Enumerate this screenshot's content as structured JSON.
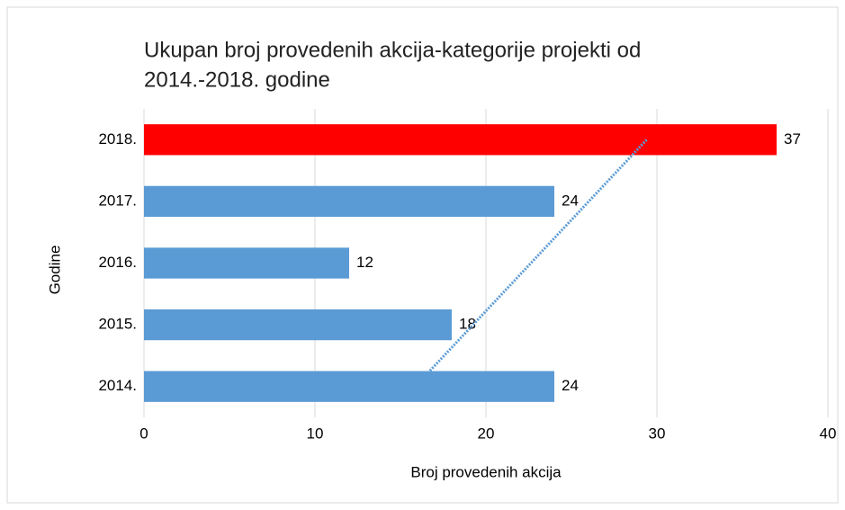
{
  "chart_data": {
    "type": "bar",
    "orientation": "horizontal",
    "title": [
      "Ukupan broj provedenih akcija-kategorije projekti od",
      "2014.-2018. godine"
    ],
    "x_label": "Broj provedenih akcija",
    "y_label": "Godine",
    "categories": [
      "2014.",
      "2015.",
      "2016.",
      "2017.",
      "2018."
    ],
    "values": [
      24,
      18,
      12,
      24,
      37
    ],
    "colors": [
      "#5b9bd5",
      "#5b9bd5",
      "#5b9bd5",
      "#5b9bd5",
      "#ff0000"
    ],
    "xlim": [
      0,
      40
    ],
    "xticks": [
      0,
      10,
      20,
      30,
      40
    ],
    "grid": true,
    "trendline": "linear",
    "trendline_color": "#5b9bd5"
  }
}
